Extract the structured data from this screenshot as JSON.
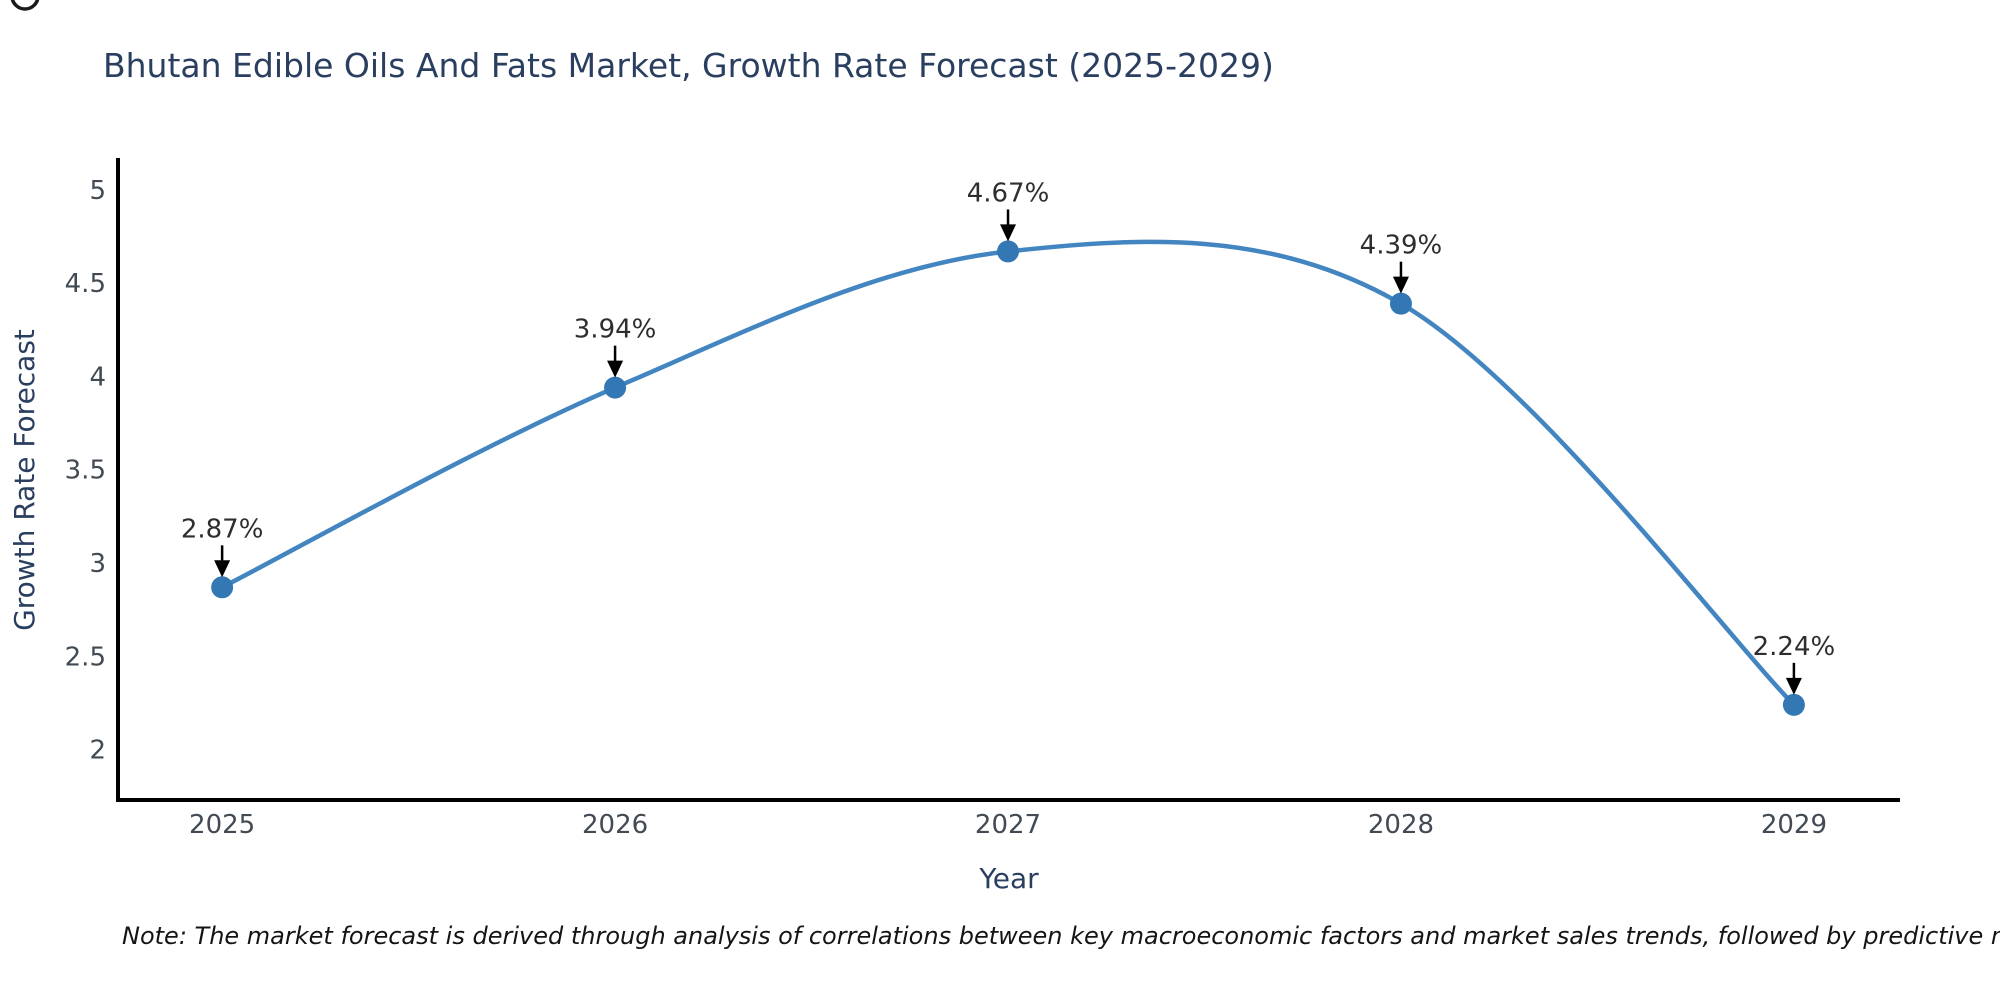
{
  "page": {
    "background": "#ffffff"
  },
  "chart_data": {
    "type": "line",
    "title": "Bhutan Edible Oils And Fats Market, Growth Rate Forecast (2025-2029)",
    "xlabel": "Year",
    "ylabel": "Growth Rate Forecast",
    "x": [
      2025,
      2026,
      2027,
      2028,
      2029
    ],
    "x_tick_labels": [
      "2025",
      "2026",
      "2027",
      "2028",
      "2029"
    ],
    "series": [
      {
        "name": "Growth Rate Forecast",
        "values": [
          2.87,
          3.94,
          4.67,
          4.39,
          2.24
        ]
      }
    ],
    "point_labels": [
      "2.87%",
      "3.94%",
      "4.67%",
      "4.39%",
      "2.24%"
    ],
    "y_ticks": [
      2,
      2.5,
      3,
      3.5,
      4,
      4.5,
      5
    ],
    "y_tick_labels": [
      "2",
      "2.5",
      "3",
      "3.5",
      "4",
      "4.5",
      "5"
    ],
    "xlim": [
      2024.735,
      2029.27
    ],
    "ylim": [
      1.73,
      5.16
    ],
    "grid": false,
    "legend": "none",
    "line_shape": "spline",
    "colors": {
      "line": "#4285c0",
      "marker": "#3377b4",
      "annotation_text": "#2e2e2e",
      "arrow": "#000000",
      "axis": "#000000",
      "title": "#2a3f5f",
      "axis_title": "#2a3f5f",
      "tick": "#424a54",
      "note": "#141414"
    }
  },
  "note": "Note: The market forecast is derived through analysis of correlations between key macroeconomic factors and market sales trends, followed by predictive modeling to project future sales"
}
